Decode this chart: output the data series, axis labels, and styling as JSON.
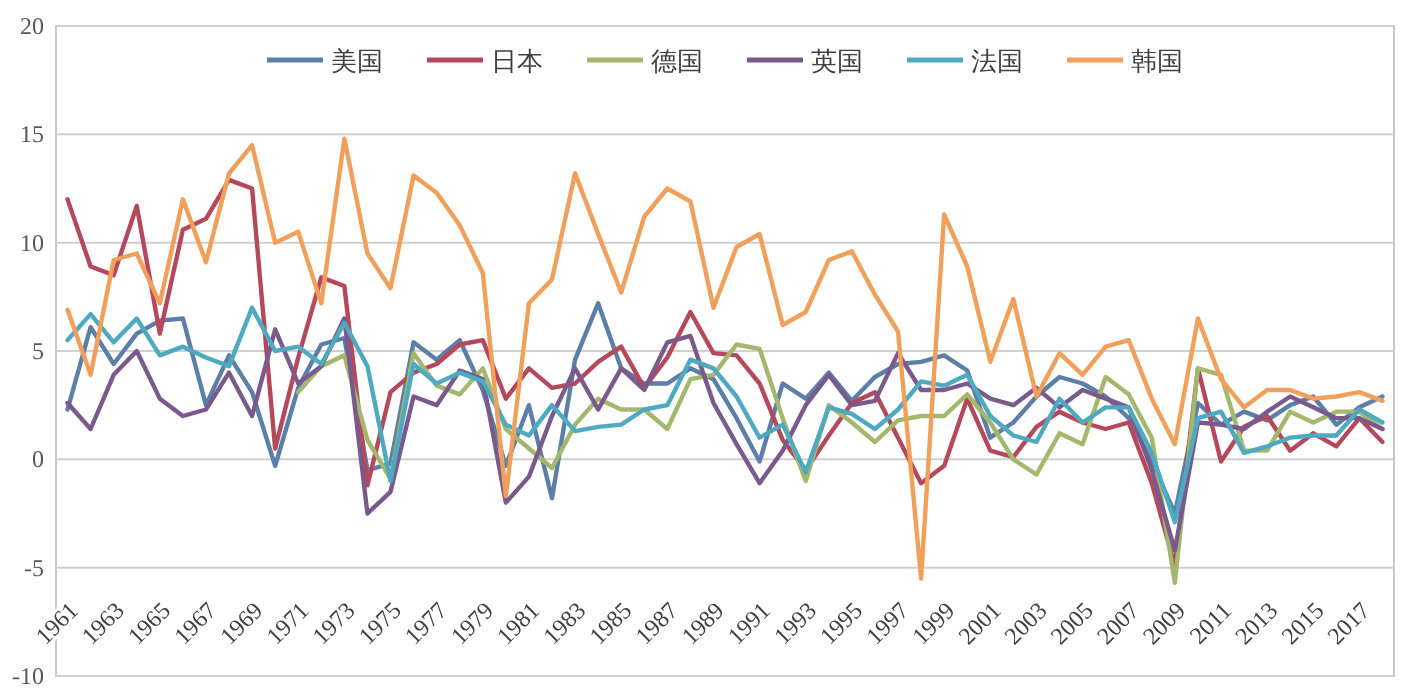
{
  "chart_data": {
    "type": "line",
    "categories": [
      "1961",
      null,
      "1963",
      null,
      "1965",
      null,
      "1967",
      null,
      "1969",
      null,
      "1971",
      null,
      "1973",
      null,
      "1975",
      null,
      "1977",
      null,
      "1979",
      null,
      "1981",
      null,
      "1983",
      null,
      "1985",
      null,
      "1987",
      null,
      "1989",
      null,
      "1991",
      null,
      "1993",
      null,
      "1995",
      null,
      "1997",
      null,
      "1999",
      null,
      "2001",
      null,
      "2003",
      null,
      "2005",
      null,
      "2007",
      null,
      "2009",
      null,
      "2011",
      null,
      "2013",
      null,
      "2015",
      null,
      "2017",
      null
    ],
    "series": [
      {
        "name": "美国",
        "color": "#5b7fa8",
        "values": [
          2.3,
          6.1,
          4.4,
          5.8,
          6.4,
          6.5,
          2.5,
          4.8,
          3.1,
          -0.3,
          3.3,
          5.3,
          5.6,
          -0.5,
          -0.2,
          5.4,
          4.6,
          5.5,
          3.2,
          -0.3,
          2.5,
          -1.8,
          4.6,
          7.2,
          4.2,
          3.5,
          3.5,
          4.2,
          3.7,
          1.9,
          -0.1,
          3.5,
          2.8,
          4.0,
          2.7,
          3.8,
          4.4,
          4.5,
          4.8,
          4.1,
          1.0,
          1.7,
          2.9,
          3.8,
          3.5,
          2.9,
          1.9,
          -0.1,
          -2.5,
          2.6,
          1.6,
          2.2,
          1.8,
          2.5,
          2.9,
          1.6,
          2.4,
          2.9
        ]
      },
      {
        "name": "日本",
        "color": "#b5495b",
        "values": [
          12.0,
          8.9,
          8.5,
          11.7,
          5.8,
          10.6,
          11.1,
          12.9,
          12.5,
          0.5,
          4.7,
          8.4,
          8.0,
          -1.2,
          3.1,
          4.0,
          4.4,
          5.3,
          5.5,
          2.8,
          4.2,
          3.3,
          3.5,
          4.5,
          5.2,
          3.3,
          4.7,
          6.8,
          4.9,
          4.8,
          3.5,
          0.9,
          -0.5,
          1.1,
          2.6,
          3.1,
          1.0,
          -1.1,
          -0.3,
          2.8,
          0.4,
          0.1,
          1.5,
          2.2,
          1.7,
          1.4,
          1.7,
          -1.1,
          -4.9,
          4.2,
          -0.1,
          1.5,
          2.0,
          0.4,
          1.2,
          0.6,
          1.9,
          0.8
        ]
      },
      {
        "name": "德国",
        "color": "#a3b86c",
        "values": [
          null,
          null,
          null,
          null,
          null,
          null,
          null,
          null,
          null,
          null,
          3.1,
          4.3,
          4.8,
          0.9,
          -0.9,
          4.9,
          3.4,
          3.0,
          4.2,
          1.4,
          0.5,
          -0.4,
          1.6,
          2.8,
          2.3,
          2.3,
          1.4,
          3.7,
          3.9,
          5.3,
          5.1,
          1.9,
          -1.0,
          2.5,
          1.7,
          0.8,
          1.8,
          2.0,
          2.0,
          3.0,
          1.7,
          0.0,
          -0.7,
          1.2,
          0.7,
          3.8,
          3.0,
          1.0,
          -5.7,
          4.2,
          3.9,
          0.4,
          0.4,
          2.2,
          1.7,
          2.2,
          2.2,
          1.4
        ]
      },
      {
        "name": "英国",
        "color": "#7a5a8c",
        "values": [
          2.6,
          1.4,
          3.9,
          5.0,
          2.8,
          2.0,
          2.3,
          4.0,
          2.0,
          6.0,
          3.5,
          4.3,
          6.5,
          -2.5,
          -1.5,
          2.9,
          2.5,
          4.1,
          3.7,
          -2.0,
          -0.8,
          2.0,
          4.2,
          2.3,
          4.2,
          3.2,
          5.4,
          5.7,
          2.6,
          0.7,
          -1.1,
          0.4,
          2.5,
          3.9,
          2.5,
          2.7,
          4.9,
          3.2,
          3.2,
          3.5,
          2.8,
          2.5,
          3.3,
          2.4,
          3.2,
          2.8,
          2.4,
          -0.5,
          -4.2,
          1.7,
          1.6,
          1.4,
          2.2,
          2.9,
          2.4,
          1.9,
          1.9,
          1.4
        ]
      },
      {
        "name": "法国",
        "color": "#4fa9c0",
        "values": [
          5.5,
          6.7,
          5.4,
          6.5,
          4.8,
          5.2,
          4.7,
          4.3,
          7.0,
          5.0,
          5.2,
          4.4,
          6.3,
          4.3,
          -1.0,
          4.4,
          3.5,
          4.0,
          3.6,
          1.6,
          1.1,
          2.5,
          1.3,
          1.5,
          1.6,
          2.3,
          2.5,
          4.6,
          4.2,
          2.9,
          1.0,
          1.6,
          -0.6,
          2.4,
          2.1,
          1.4,
          2.3,
          3.6,
          3.4,
          3.9,
          2.0,
          1.1,
          0.8,
          2.8,
          1.7,
          2.4,
          2.4,
          0.3,
          -2.9,
          1.9,
          2.2,
          0.3,
          0.6,
          1.0,
          1.1,
          1.1,
          2.3,
          1.7
        ]
      },
      {
        "name": "韩国",
        "color": "#f0a05a",
        "values": [
          6.9,
          3.9,
          9.2,
          9.5,
          7.2,
          12.0,
          9.1,
          13.2,
          14.5,
          10.0,
          10.5,
          7.2,
          14.8,
          9.5,
          7.9,
          13.1,
          12.3,
          10.8,
          8.6,
          -1.7,
          7.2,
          8.3,
          13.2,
          10.4,
          7.7,
          11.2,
          12.5,
          11.9,
          7.0,
          9.8,
          10.4,
          6.2,
          6.8,
          9.2,
          9.6,
          7.6,
          5.9,
          -5.5,
          11.3,
          8.9,
          4.5,
          7.4,
          2.9,
          4.9,
          3.9,
          5.2,
          5.5,
          2.8,
          0.7,
          6.5,
          3.7,
          2.4,
          3.2,
          3.2,
          2.8,
          2.9,
          3.1,
          2.7
        ]
      }
    ],
    "ylim": [
      -10,
      20
    ],
    "yticks": [
      -10,
      -5,
      0,
      5,
      10,
      15,
      20
    ],
    "grid": "y",
    "legend": "top",
    "marker": "none",
    "line_style": "solid"
  }
}
